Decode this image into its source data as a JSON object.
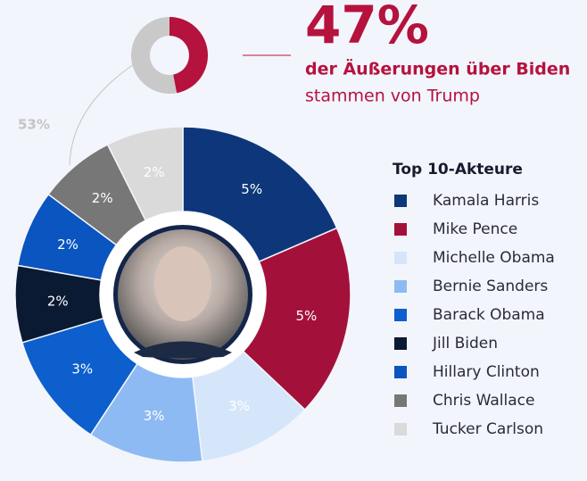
{
  "chart_data": [
    {
      "type": "donut",
      "values": [
        47,
        53
      ],
      "value_labels": [
        "47%",
        "53%"
      ],
      "colors": [
        "#b5123e",
        "#c9c9c9"
      ],
      "subtitle": "der Äußerungen über Biden",
      "note": "stammen von Trump"
    },
    {
      "type": "donut",
      "legend_title": "Top 10-Akteure",
      "categories": [
        "Kamala Harris",
        "Mike Pence",
        "Michelle Obama",
        "Bernie Sanders",
        "Barack Obama",
        "Jill Biden",
        "Hillary Clinton",
        "Chris Wallace",
        "Tucker Carlson"
      ],
      "values": [
        5,
        5,
        3,
        3,
        3,
        2,
        2,
        2,
        2
      ],
      "value_labels": [
        "5%",
        "5%",
        "3%",
        "3%",
        "3%",
        "2%",
        "2%",
        "2%",
        "2%"
      ],
      "colors": [
        "#0d377a",
        "#a3113a",
        "#d5e6fb",
        "#8dbaf2",
        "#0c5fcc",
        "#0b1a33",
        "#0a55bf",
        "#777777",
        "#dadada"
      ]
    }
  ]
}
